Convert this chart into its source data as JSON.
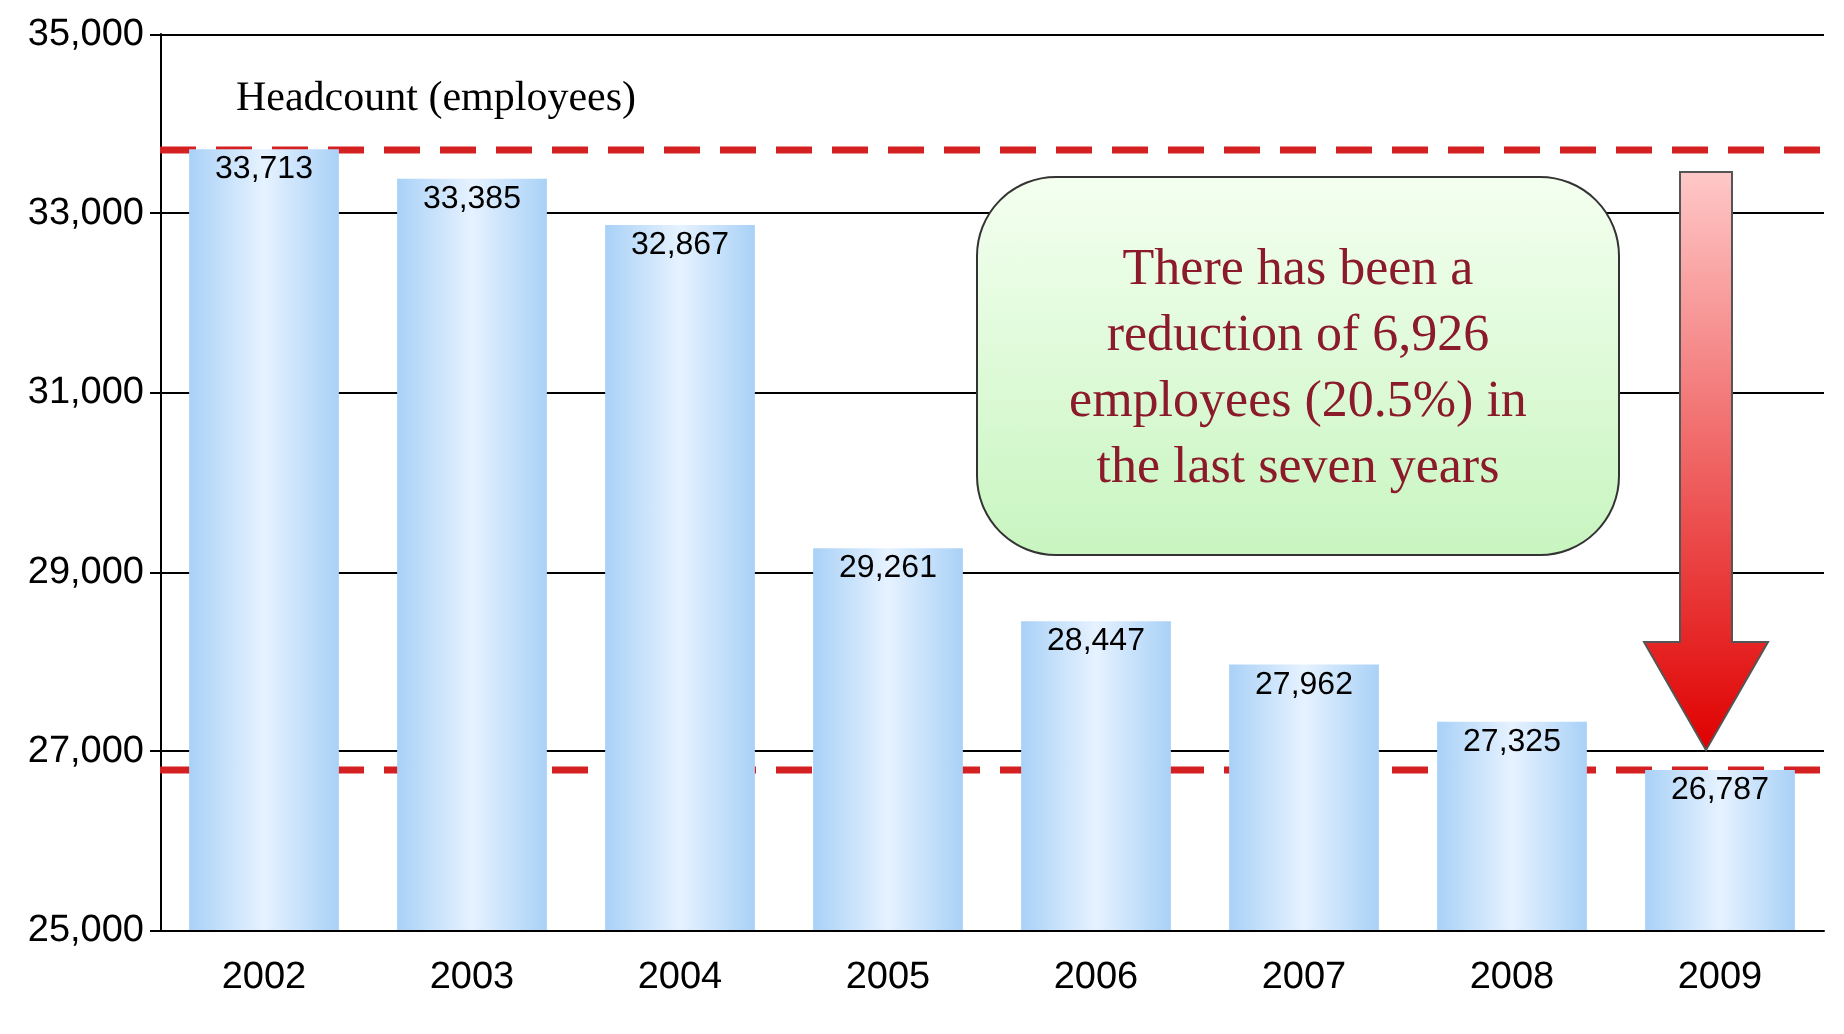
{
  "chart_data": {
    "type": "bar",
    "ylabel": "Headcount (employees)",
    "categories": [
      "2002",
      "2003",
      "2004",
      "2005",
      "2006",
      "2007",
      "2008",
      "2009"
    ],
    "values": [
      33713,
      33385,
      32867,
      29261,
      28447,
      27962,
      27325,
      26787
    ],
    "color": "#a9d1f7",
    "ylim": [
      25000,
      35000
    ],
    "yticks": [
      {
        "value": 25000,
        "label": "25,000"
      },
      {
        "value": 27000,
        "label": "27,000"
      },
      {
        "value": 29000,
        "label": "29,000"
      },
      {
        "value": 31000,
        "label": "31,000"
      },
      {
        "value": 33000,
        "label": "33,000"
      },
      {
        "value": 35000,
        "label": "35,000"
      }
    ],
    "grid": "y",
    "value_labels": [
      "33,713",
      "33,385",
      "32,867",
      "29,261",
      "28,447",
      "27,962",
      "27,325",
      "26,787"
    ],
    "ref_lines": [
      {
        "axis": "y",
        "value": 33713,
        "color": "#d42020",
        "line_style": "dashed"
      },
      {
        "axis": "y",
        "value": 26787,
        "color": "#d42020",
        "line_style": "dashed"
      }
    ],
    "annotations": [
      "There has been a reduction of 6,926 employees (20.5%) in the last seven years"
    ]
  }
}
